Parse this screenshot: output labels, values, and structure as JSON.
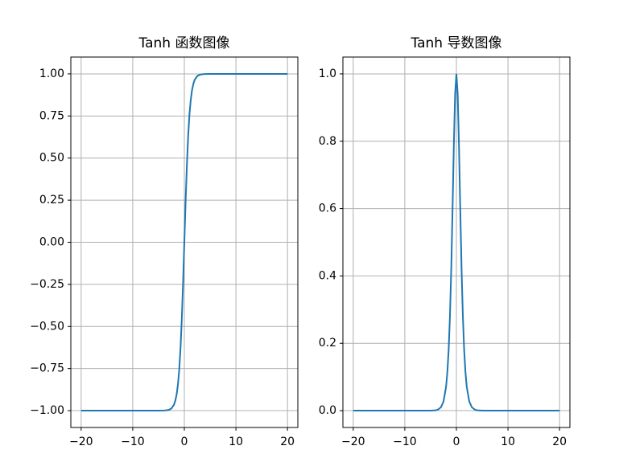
{
  "chart_data": [
    {
      "type": "line",
      "title": "Tanh 函数图像",
      "color": "#1f77b4",
      "grid": true,
      "x": [
        -20,
        -15,
        -10,
        -6,
        -5,
        -4,
        -3.5,
        -3,
        -2.5,
        -2,
        -1.75,
        -1.5,
        -1.25,
        -1,
        -0.75,
        -0.5,
        -0.25,
        0,
        0.25,
        0.5,
        0.75,
        1,
        1.25,
        1.5,
        1.75,
        2,
        2.5,
        3,
        3.5,
        4,
        5,
        6,
        10,
        15,
        20
      ],
      "values": [
        -1,
        -1,
        -1,
        -1,
        -1,
        -0.999,
        -0.998,
        -0.995,
        -0.987,
        -0.964,
        -0.941,
        -0.905,
        -0.848,
        -0.762,
        -0.635,
        -0.462,
        -0.245,
        0,
        0.245,
        0.462,
        0.635,
        0.762,
        0.848,
        0.905,
        0.941,
        0.964,
        0.987,
        0.995,
        0.998,
        0.999,
        1,
        1,
        1,
        1,
        1
      ],
      "xlim": [
        -22,
        22
      ],
      "ylim": [
        -1.1,
        1.1
      ],
      "xticks": [
        {
          "value": -20,
          "label": "−20"
        },
        {
          "value": -10,
          "label": "−10"
        },
        0,
        10,
        20
      ],
      "yticks": [
        {
          "value": -1,
          "label": "−1.00"
        },
        {
          "value": -0.75,
          "label": "−0.75"
        },
        {
          "value": -0.5,
          "label": "−0.50"
        },
        {
          "value": -0.25,
          "label": "−0.25"
        },
        {
          "value": 0,
          "label": "0.00"
        },
        0.25,
        {
          "value": 0.5,
          "label": "0.50"
        },
        0.75,
        {
          "value": 1,
          "label": "1.00"
        }
      ]
    },
    {
      "type": "line",
      "title": "Tanh 导数图像",
      "color": "#1f77b4",
      "grid": true,
      "x": [
        -20,
        -15,
        -10,
        -6,
        -5,
        -4,
        -3.5,
        -3,
        -2.5,
        -2,
        -1.75,
        -1.5,
        -1.25,
        -1,
        -0.75,
        -0.5,
        -0.25,
        0,
        0.25,
        0.5,
        0.75,
        1,
        1.25,
        1.5,
        1.75,
        2,
        2.5,
        3,
        3.5,
        4,
        5,
        6,
        10,
        15,
        20
      ],
      "values": [
        0,
        0,
        0,
        0,
        0,
        0.001,
        0.004,
        0.01,
        0.027,
        0.071,
        0.115,
        0.181,
        0.281,
        0.42,
        0.597,
        0.786,
        0.94,
        1,
        0.94,
        0.786,
        0.597,
        0.42,
        0.281,
        0.181,
        0.115,
        0.071,
        0.027,
        0.01,
        0.004,
        0.001,
        0,
        0,
        0,
        0,
        0
      ],
      "xlim": [
        -22,
        22
      ],
      "ylim": [
        -0.05,
        1.05
      ],
      "xticks": [
        {
          "value": -20,
          "label": "−20"
        },
        {
          "value": -10,
          "label": "−10"
        },
        0,
        10,
        20
      ],
      "yticks": [
        {
          "value": 0,
          "label": "0.0"
        },
        0.2,
        0.4,
        0.6,
        0.8,
        {
          "value": 1,
          "label": "1.0"
        }
      ]
    }
  ]
}
